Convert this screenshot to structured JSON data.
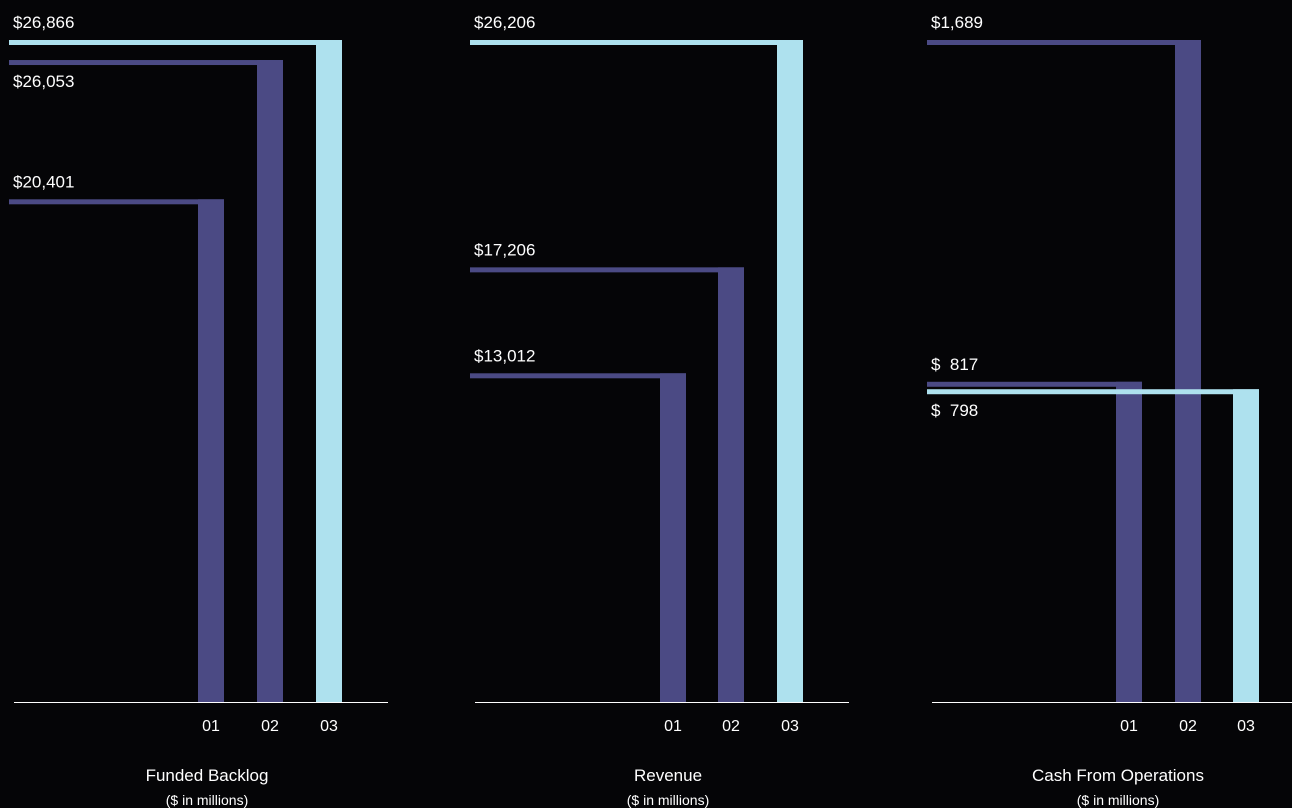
{
  "colors": {
    "background": "#050507",
    "purple": "#4b4a84",
    "light_blue": "#aee1ee",
    "text": "#ffffff",
    "axis": "#ffffff"
  },
  "chart_data": [
    {
      "type": "bar",
      "title": "Funded Backlog",
      "subtitle": "($ in millions)",
      "categories": [
        "01",
        "02",
        "03"
      ],
      "values": [
        20401,
        26053,
        26866
      ],
      "value_labels": [
        "$20,401",
        "$26,053",
        "$26,866"
      ],
      "highlight": [
        false,
        false,
        true
      ],
      "ylim": [
        0,
        26866
      ]
    },
    {
      "type": "bar",
      "title": "Revenue",
      "subtitle": "($ in millions)",
      "categories": [
        "01",
        "02",
        "03"
      ],
      "values": [
        13012,
        17206,
        26206
      ],
      "value_labels": [
        "$13,012",
        "$17,206",
        "$26,206"
      ],
      "highlight": [
        false,
        false,
        true
      ],
      "ylim": [
        0,
        26206
      ]
    },
    {
      "type": "bar",
      "title": "Cash From Operations",
      "subtitle": "($ in millions)",
      "categories": [
        "01",
        "02",
        "03"
      ],
      "values": [
        817,
        1689,
        798
      ],
      "value_labels": [
        "$  817",
        "$1,689",
        "$  798"
      ],
      "highlight": [
        false,
        false,
        true
      ],
      "ylim": [
        0,
        1689
      ]
    }
  ]
}
